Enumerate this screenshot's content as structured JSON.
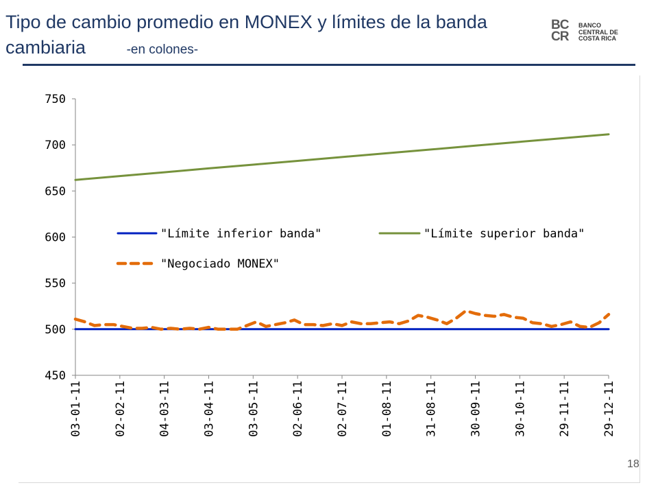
{
  "slide": {
    "title": "Tipo de cambio promedio en MONEX y límites de la banda cambiaria",
    "subtitle": "-en colones-",
    "page_number": "18",
    "logo": {
      "mark": "BCCR",
      "line1": "BANCO",
      "line2": "CENTRAL DE",
      "line3": "COSTA RICA"
    }
  },
  "colors": {
    "title": "#1f3864",
    "lower_band": "#0020c0",
    "upper_band": "#76923c",
    "monex": "#e36c0a"
  },
  "chart_data": {
    "type": "line",
    "title": "",
    "xlabel": "",
    "ylabel": "",
    "ylim": [
      450,
      750
    ],
    "yticks": [
      "450",
      "500",
      "550",
      "600",
      "650",
      "700",
      "750"
    ],
    "x_tick_labels": [
      "03-01-11",
      "02-02-11",
      "04-03-11",
      "03-04-11",
      "03-05-11",
      "02-06-11",
      "02-07-11",
      "01-08-11",
      "31-08-11",
      "30-09-11",
      "30-10-11",
      "29-11-11",
      "29-12-11"
    ],
    "grid": false,
    "legend": "inside-middle",
    "series": [
      {
        "name": "\"Límite inferior banda\"",
        "style": "solid",
        "color": "#0020c0",
        "values": [
          500,
          500,
          500,
          500,
          500,
          500,
          500,
          500,
          500,
          500,
          500,
          500,
          500
        ]
      },
      {
        "name": "\"Límite superior banda\"",
        "style": "solid",
        "color": "#76923c",
        "values": [
          662,
          666.2,
          670.3,
          674.5,
          678.5,
          682.6,
          686.8,
          690.9,
          695,
          699.2,
          703.3,
          707.4,
          711.5
        ]
      },
      {
        "name": "\"Negociado MONEX\"",
        "style": "dashed",
        "color": "#e36c0a",
        "values": [
          511,
          508,
          504,
          505,
          505,
          503,
          501,
          501,
          502,
          500,
          501,
          500,
          501,
          500,
          502,
          500,
          500,
          500,
          504,
          508,
          503,
          505,
          507,
          510,
          505,
          505,
          504,
          506,
          504,
          508,
          506,
          506,
          507,
          508,
          506,
          509,
          515,
          513,
          510,
          506,
          512,
          520,
          517,
          515,
          514,
          516,
          513,
          512,
          507,
          506,
          503,
          505,
          508,
          503,
          502,
          507,
          516
        ]
      }
    ]
  }
}
